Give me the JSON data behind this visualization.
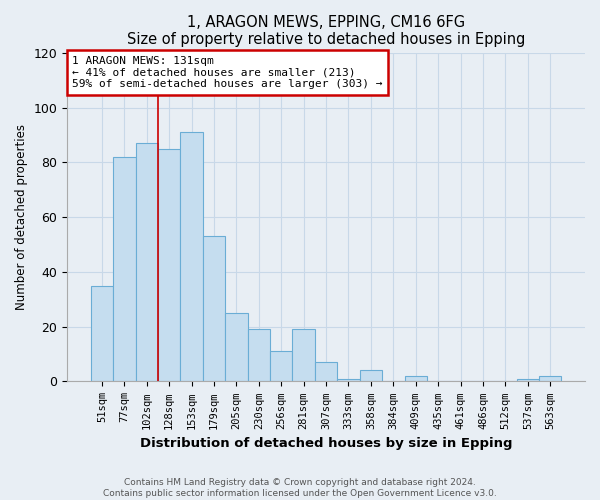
{
  "title": "1, ARAGON MEWS, EPPING, CM16 6FG",
  "subtitle": "Size of property relative to detached houses in Epping",
  "xlabel": "Distribution of detached houses by size in Epping",
  "ylabel": "Number of detached properties",
  "categories": [
    "51sqm",
    "77sqm",
    "102sqm",
    "128sqm",
    "153sqm",
    "179sqm",
    "205sqm",
    "230sqm",
    "256sqm",
    "281sqm",
    "307sqm",
    "333sqm",
    "358sqm",
    "384sqm",
    "409sqm",
    "435sqm",
    "461sqm",
    "486sqm",
    "512sqm",
    "537sqm",
    "563sqm"
  ],
  "values": [
    35,
    82,
    87,
    85,
    91,
    53,
    25,
    19,
    11,
    19,
    7,
    1,
    4,
    0,
    2,
    0,
    0,
    0,
    0,
    1,
    2
  ],
  "bar_color": "#c5ddef",
  "bar_edge_color": "#6aadd5",
  "annotation_box_color": "#ffffff",
  "annotation_box_edge": "#cc0000",
  "annotation_line1": "1 ARAGON MEWS: 131sqm",
  "annotation_line2": "← 41% of detached houses are smaller (213)",
  "annotation_line3": "59% of semi-detached houses are larger (303) →",
  "ylim": [
    0,
    120
  ],
  "yticks": [
    0,
    20,
    40,
    60,
    80,
    100,
    120
  ],
  "marker_bar_index": 3,
  "footer_line1": "Contains HM Land Registry data © Crown copyright and database right 2024.",
  "footer_line2": "Contains public sector information licensed under the Open Government Licence v3.0.",
  "bg_color": "#e8eef4",
  "plot_bg_color": "#e8eef4",
  "grid_color": "#c8d8e8"
}
